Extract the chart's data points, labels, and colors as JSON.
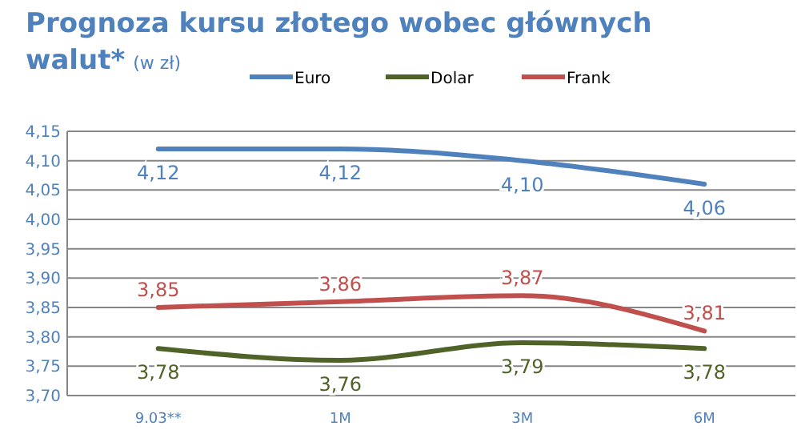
{
  "chart_data": {
    "type": "line",
    "title": "Prognoza kursu złotego wobec głównych walut*",
    "subtitle": "(w zł)",
    "categories": [
      "9.03**",
      "1M",
      "3M",
      "6M"
    ],
    "series": [
      {
        "name": "Euro",
        "color": "#4f81bd",
        "values": [
          4.12,
          4.12,
          4.1,
          4.06
        ],
        "value_labels": [
          "4,12",
          "4,12",
          "4,10",
          "4,06"
        ]
      },
      {
        "name": "Dolar",
        "color": "#4f6228",
        "values": [
          3.78,
          3.76,
          3.79,
          3.78
        ],
        "value_labels": [
          "3,78",
          "3,76",
          "3,79",
          "3,78"
        ]
      },
      {
        "name": "Frank",
        "color": "#c0504d",
        "values": [
          3.85,
          3.86,
          3.87,
          3.81
        ],
        "value_labels": [
          "3,85",
          "3,86",
          "3,87",
          "3,81"
        ]
      }
    ],
    "ylim": [
      3.7,
      4.15
    ],
    "yticks": [
      {
        "value": 3.7,
        "label": "3,70"
      },
      {
        "value": 3.75,
        "label": "3,75"
      },
      {
        "value": 3.8,
        "label": "3,80"
      },
      {
        "value": 3.85,
        "label": "3,85"
      },
      {
        "value": 3.9,
        "label": "3,90"
      },
      {
        "value": 3.95,
        "label": "3,95"
      },
      {
        "value": 4.0,
        "label": "4,00"
      },
      {
        "value": 4.05,
        "label": "4,05"
      },
      {
        "value": 4.1,
        "label": "4,10"
      },
      {
        "value": 4.15,
        "label": "4,15"
      }
    ],
    "grid": "y",
    "legend": "top",
    "marker": "none",
    "line_style": "solid"
  }
}
